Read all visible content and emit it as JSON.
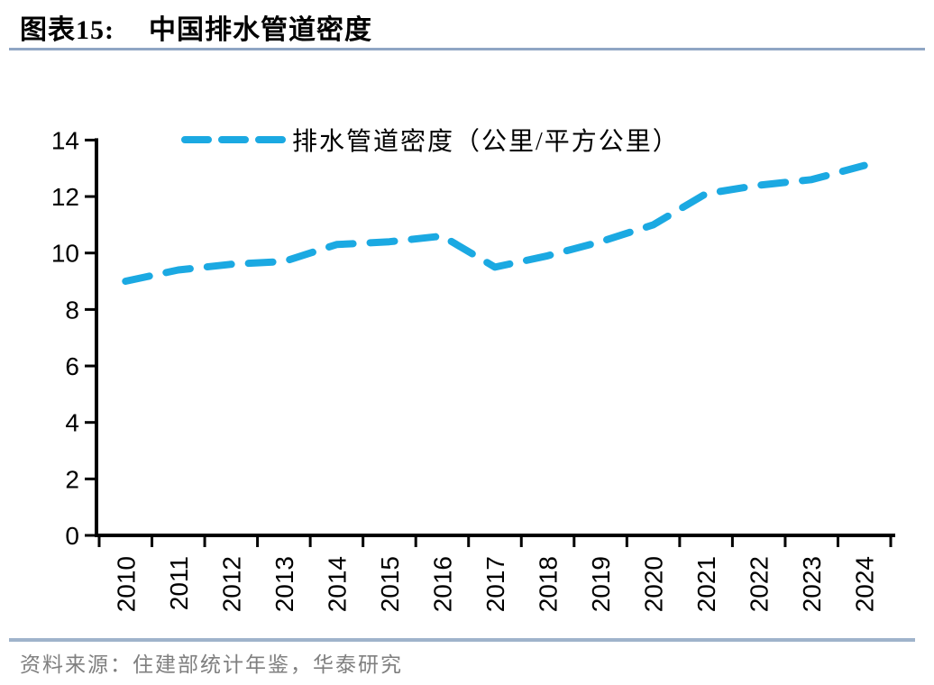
{
  "header": {
    "figure_label": "图表15:",
    "title": "中国排水管道密度"
  },
  "chart_data": {
    "type": "line",
    "title": "中国排水管道密度",
    "x": [
      2010,
      2011,
      2012,
      2013,
      2014,
      2015,
      2016,
      2017,
      2018,
      2019,
      2020,
      2021,
      2022,
      2023,
      2024
    ],
    "series": [
      {
        "name": "排水管道密度（公里/平方公里）",
        "values": [
          9.0,
          9.4,
          9.6,
          9.7,
          10.3,
          10.4,
          10.6,
          9.5,
          9.9,
          10.4,
          11.0,
          12.1,
          12.4,
          12.6,
          13.1
        ],
        "line_style": "dashed",
        "color": "#1BA9E2"
      }
    ],
    "xlabel": "",
    "ylabel": "",
    "ylim": [
      0,
      14
    ],
    "ytick_step": 2,
    "yticks": [
      0,
      2,
      4,
      6,
      8,
      10,
      12,
      14
    ],
    "grid": false,
    "legend_position": "top-center",
    "x_tick_label_rotation": 90
  },
  "footer": {
    "source": "资料来源：住建部统计年鉴，华泰研究"
  },
  "colors": {
    "line": "#1BA9E2",
    "axis": "#000000",
    "title_underline": "#8FA6C4",
    "footer_divider": "#9FB3CB",
    "source_text": "#7f7f7f",
    "tick_label": "#000000"
  }
}
